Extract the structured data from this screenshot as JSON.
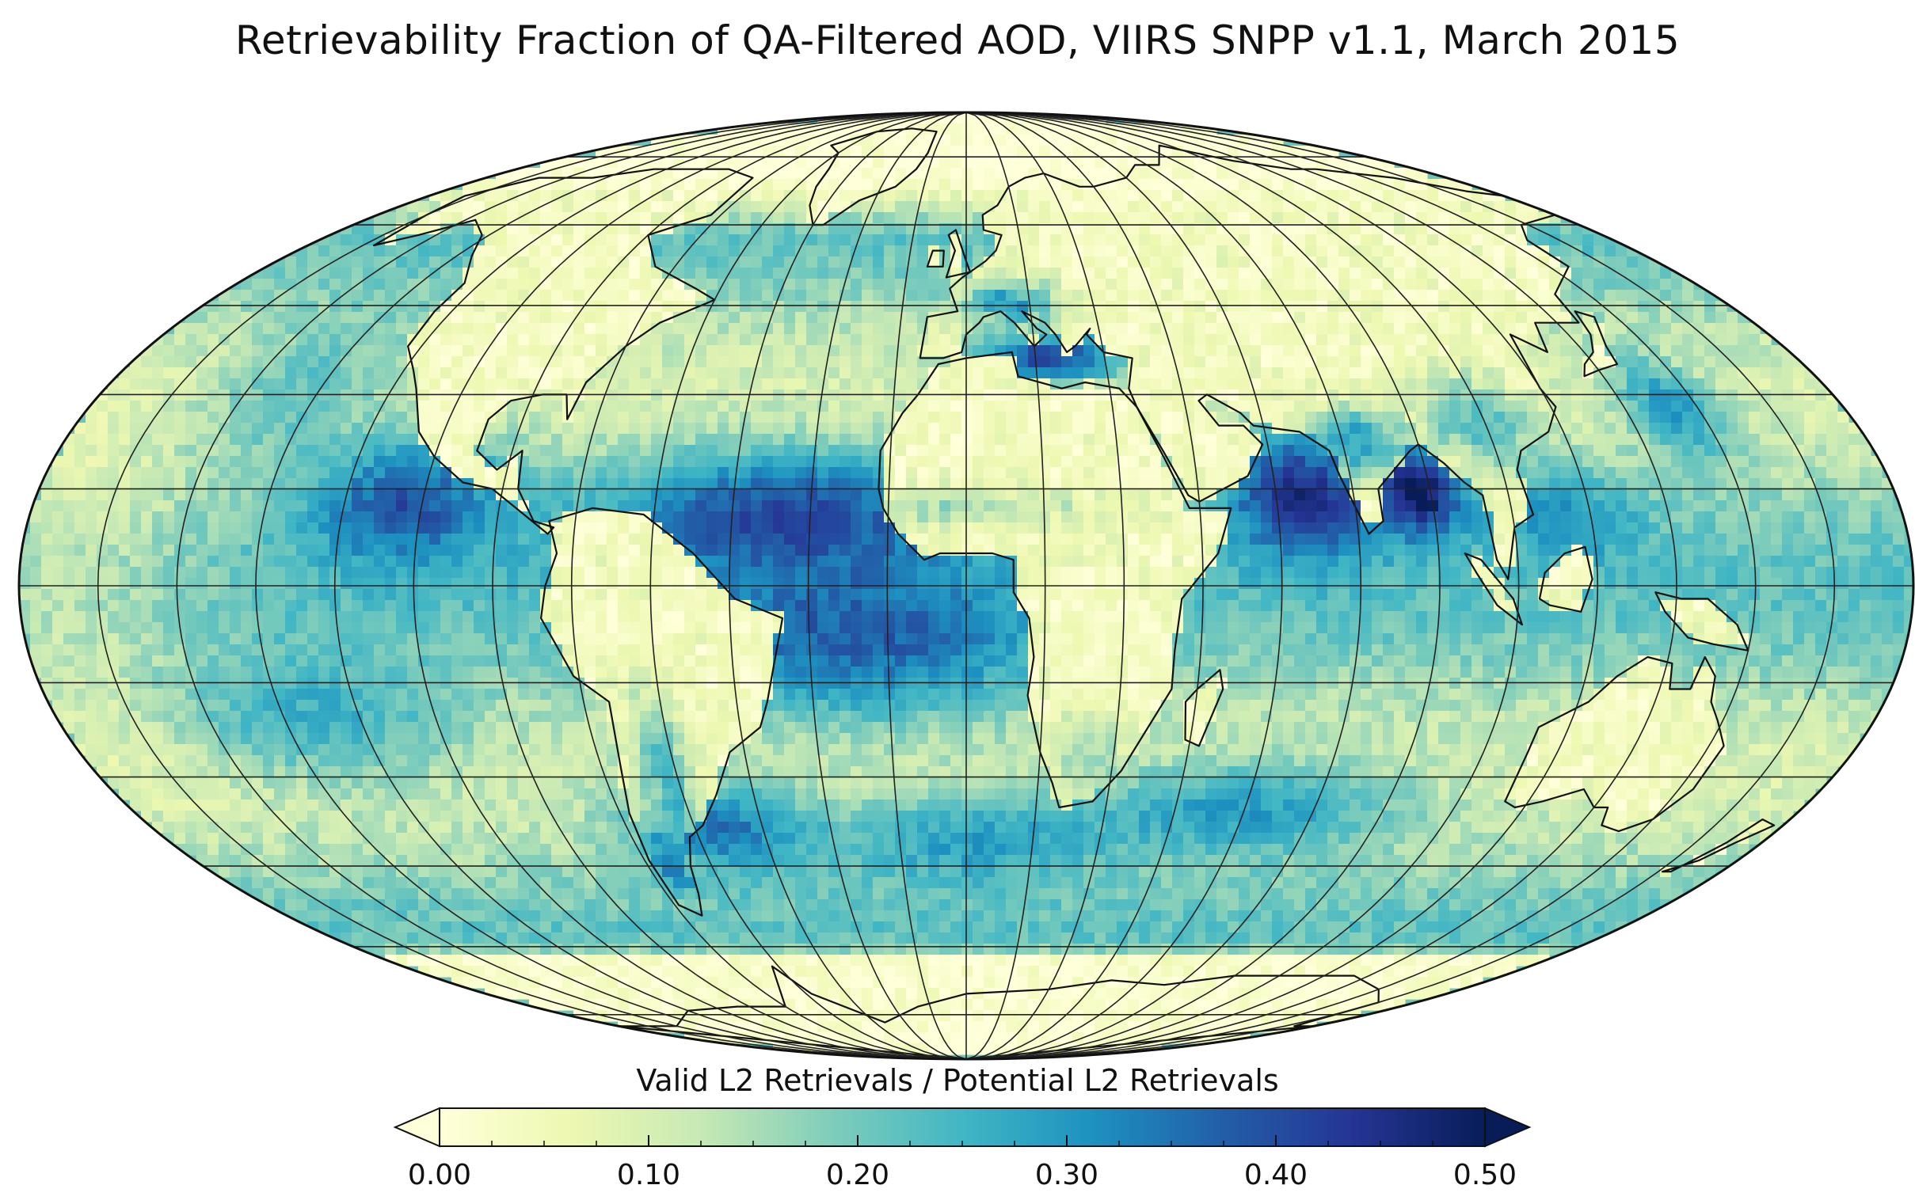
{
  "title": "Retrievability Fraction of QA-Filtered AOD, VIIRS SNPP v1.1, March 2015",
  "projection": "Mollweide",
  "map": {
    "variable": "retrievability fraction",
    "graticule_step_deg": 15,
    "coastlines": true,
    "high_regions": [
      "North Atlantic tropics",
      "Arabian Sea",
      "Bay of Bengal",
      "Mediterranean",
      "South Atlantic",
      "Southern Indian Ocean",
      "Patagonia coast",
      "East Pacific off Mexico"
    ],
    "low_regions": [
      "Sahara",
      "Arctic",
      "Antarctica",
      "Amazon",
      "Siberia",
      "Central Asia"
    ]
  },
  "colorbar": {
    "label": "Valid L2 Retrievals / Potential L2 Retrievals",
    "min": 0.0,
    "max": 0.5,
    "ticks": [
      "0.00",
      "0.10",
      "0.20",
      "0.30",
      "0.40",
      "0.50"
    ],
    "extend": "both",
    "colors": [
      "#ffffd9",
      "#edf8b1",
      "#c7e9b4",
      "#7fcdbb",
      "#41b6c4",
      "#1d91c0",
      "#225ea8",
      "#253494",
      "#081d58"
    ],
    "under_color": "#ffffd9",
    "over_color": "#081d58"
  },
  "colors": {
    "coastline": "#111111",
    "graticule": "#222222",
    "land_low": "#fdfdd3"
  }
}
